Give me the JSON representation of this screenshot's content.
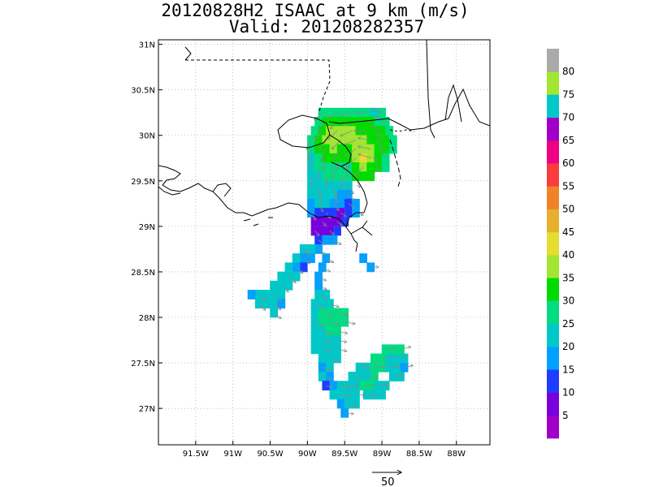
{
  "title": {
    "line1": "20120828H2 ISAAC at 9 km (m/s)",
    "line2": "Valid: 201208282357"
  },
  "map": {
    "lon_range": [
      -92.0,
      -87.55
    ],
    "lat_range": [
      26.6,
      31.05
    ],
    "lon_ticks": [
      {
        "value": -91.5,
        "label": "91.5W"
      },
      {
        "value": -91.0,
        "label": "91W"
      },
      {
        "value": -90.5,
        "label": "90.5W"
      },
      {
        "value": -90.0,
        "label": "90W"
      },
      {
        "value": -89.5,
        "label": "89.5W"
      },
      {
        "value": -89.0,
        "label": "89W"
      },
      {
        "value": -88.5,
        "label": "88.5W"
      },
      {
        "value": -88.0,
        "label": "88W"
      }
    ],
    "lat_ticks": [
      {
        "value": 27.0,
        "label": "27N"
      },
      {
        "value": 27.5,
        "label": "27.5N"
      },
      {
        "value": 28.0,
        "label": "28N"
      },
      {
        "value": 28.5,
        "label": "28.5N"
      },
      {
        "value": 29.0,
        "label": "29N"
      },
      {
        "value": 29.5,
        "label": "29.5N"
      },
      {
        "value": 30.0,
        "label": "30N"
      },
      {
        "value": 30.5,
        "label": "30.5N"
      },
      {
        "value": 31.0,
        "label": "31N"
      }
    ],
    "grid": "dotted",
    "coastline_color": "#000000"
  },
  "colorbar": {
    "colors": [
      "#a000c8",
      "#7800dc",
      "#1e3cff",
      "#00a0ff",
      "#00c8c8",
      "#00dc82",
      "#00dc00",
      "#a0e632",
      "#e6dc32",
      "#e6af2d",
      "#f08228",
      "#fa3c3c",
      "#f00082",
      "#a000c8",
      "#00c8c8",
      "#a0e632",
      "#aaaaaa"
    ],
    "labels": [
      "5",
      "10",
      "15",
      "20",
      "25",
      "30",
      "35",
      "40",
      "45",
      "50",
      "55",
      "60",
      "65",
      "70",
      "75",
      "80"
    ]
  },
  "wind_swaths": [
    {
      "name": "north-core",
      "cells": [
        [
          -89.8,
          30.25,
          27
        ],
        [
          -89.7,
          30.25,
          25
        ],
        [
          -89.6,
          30.25,
          27
        ],
        [
          -89.5,
          30.25,
          28
        ],
        [
          -89.4,
          30.25,
          26
        ],
        [
          -89.3,
          30.25,
          28
        ],
        [
          -89.2,
          30.25,
          25
        ],
        [
          -89.1,
          30.25,
          24
        ],
        [
          -89.0,
          30.25,
          26
        ],
        [
          -89.85,
          30.15,
          26
        ],
        [
          -89.75,
          30.15,
          30
        ],
        [
          -89.65,
          30.15,
          33
        ],
        [
          -89.55,
          30.15,
          34
        ],
        [
          -89.45,
          30.15,
          33
        ],
        [
          -89.35,
          30.15,
          32
        ],
        [
          -89.25,
          30.15,
          30
        ],
        [
          -89.15,
          30.15,
          30
        ],
        [
          -89.05,
          30.15,
          29
        ],
        [
          -88.95,
          30.15,
          28
        ],
        [
          -89.9,
          30.05,
          27
        ],
        [
          -89.8,
          30.05,
          32
        ],
        [
          -89.7,
          30.05,
          35
        ],
        [
          -89.6,
          30.05,
          36
        ],
        [
          -89.5,
          30.05,
          36
        ],
        [
          -89.4,
          30.05,
          35
        ],
        [
          -89.3,
          30.05,
          34
        ],
        [
          -89.2,
          30.05,
          33
        ],
        [
          -89.1,
          30.05,
          31
        ],
        [
          -89.0,
          30.05,
          30
        ],
        [
          -88.9,
          30.05,
          29
        ],
        [
          -89.95,
          29.95,
          26
        ],
        [
          -89.85,
          29.95,
          33
        ],
        [
          -89.75,
          29.95,
          36
        ],
        [
          -89.65,
          29.95,
          37
        ],
        [
          -89.55,
          29.95,
          36
        ],
        [
          -89.45,
          29.95,
          35
        ],
        [
          -89.35,
          29.95,
          36
        ],
        [
          -89.25,
          29.95,
          37
        ],
        [
          -89.15,
          29.95,
          34
        ],
        [
          -89.05,
          29.95,
          32
        ],
        [
          -88.95,
          29.95,
          30
        ],
        [
          -88.85,
          29.95,
          28
        ],
        [
          -89.95,
          29.85,
          25
        ],
        [
          -89.85,
          29.85,
          30
        ],
        [
          -89.75,
          29.85,
          34
        ],
        [
          -89.65,
          29.85,
          35
        ],
        [
          -89.55,
          29.85,
          33
        ],
        [
          -89.45,
          29.85,
          34
        ],
        [
          -89.35,
          29.85,
          37
        ],
        [
          -89.25,
          29.85,
          38
        ],
        [
          -89.15,
          29.85,
          36
        ],
        [
          -89.05,
          29.85,
          33
        ],
        [
          -88.95,
          29.85,
          30
        ],
        [
          -88.85,
          29.85,
          28
        ],
        [
          -89.95,
          29.75,
          24
        ],
        [
          -89.85,
          29.75,
          27
        ],
        [
          -89.75,
          29.75,
          30
        ],
        [
          -89.65,
          29.75,
          31
        ],
        [
          -89.55,
          29.75,
          30
        ],
        [
          -89.45,
          29.75,
          32
        ],
        [
          -89.35,
          29.75,
          38
        ],
        [
          -89.25,
          29.75,
          41
        ],
        [
          -89.15,
          29.75,
          36
        ],
        [
          -89.05,
          29.75,
          32
        ],
        [
          -88.95,
          29.75,
          29
        ],
        [
          -89.95,
          29.65,
          23
        ],
        [
          -89.85,
          29.65,
          25
        ],
        [
          -89.75,
          29.65,
          27
        ],
        [
          -89.65,
          29.65,
          28
        ],
        [
          -89.55,
          29.65,
          27
        ],
        [
          -89.45,
          29.65,
          28
        ],
        [
          -89.35,
          29.65,
          33
        ],
        [
          -89.25,
          29.65,
          36
        ],
        [
          -89.15,
          29.65,
          33
        ],
        [
          -89.05,
          29.65,
          30
        ],
        [
          -88.95,
          29.65,
          28
        ],
        [
          -89.95,
          29.55,
          22
        ],
        [
          -89.85,
          29.55,
          24
        ],
        [
          -89.75,
          29.55,
          25
        ],
        [
          -89.65,
          29.55,
          26
        ],
        [
          -89.55,
          29.55,
          26
        ],
        [
          -89.45,
          29.55,
          26
        ],
        [
          -89.35,
          29.55,
          30
        ],
        [
          -89.25,
          29.55,
          33
        ],
        [
          -89.15,
          29.55,
          31
        ],
        [
          -89.95,
          29.45,
          21
        ],
        [
          -89.85,
          29.45,
          23
        ],
        [
          -89.75,
          29.45,
          24
        ],
        [
          -89.65,
          29.45,
          24
        ],
        [
          -89.55,
          29.45,
          23
        ],
        [
          -89.45,
          29.45,
          22
        ],
        [
          -89.95,
          29.35,
          20
        ],
        [
          -89.85,
          29.35,
          21
        ],
        [
          -89.75,
          29.35,
          22
        ],
        [
          -89.65,
          29.35,
          21
        ],
        [
          -89.55,
          29.35,
          17
        ],
        [
          -89.45,
          29.35,
          18
        ],
        [
          -89.95,
          29.25,
          19
        ],
        [
          -89.85,
          29.25,
          20
        ],
        [
          -89.75,
          29.25,
          21
        ],
        [
          -89.65,
          29.25,
          19
        ],
        [
          -89.55,
          29.25,
          15
        ],
        [
          -89.45,
          29.25,
          14
        ],
        [
          -89.35,
          29.25,
          16
        ]
      ]
    },
    {
      "name": "mid-core",
      "cells": [
        [
          -89.95,
          29.15,
          18
        ],
        [
          -89.85,
          29.15,
          14
        ],
        [
          -89.75,
          29.15,
          13
        ],
        [
          -89.65,
          29.15,
          11
        ],
        [
          -89.55,
          29.15,
          9
        ],
        [
          -89.45,
          29.15,
          13
        ],
        [
          -89.35,
          29.15,
          15
        ],
        [
          -89.9,
          29.05,
          8
        ],
        [
          -89.8,
          29.05,
          6
        ],
        [
          -89.7,
          29.05,
          7
        ],
        [
          -89.6,
          29.05,
          9
        ],
        [
          -89.5,
          29.05,
          12
        ],
        [
          -89.9,
          28.95,
          9
        ],
        [
          -89.8,
          28.95,
          5
        ],
        [
          -89.7,
          28.95,
          7
        ],
        [
          -89.6,
          28.95,
          11
        ],
        [
          -89.85,
          28.85,
          13
        ],
        [
          -89.75,
          28.85,
          16
        ],
        [
          -89.65,
          28.85,
          19
        ],
        [
          -89.25,
          28.65,
          16
        ],
        [
          -89.15,
          28.55,
          15
        ]
      ]
    },
    {
      "name": "west-band",
      "cells": [
        [
          -89.85,
          28.75,
          19
        ],
        [
          -89.95,
          28.75,
          21
        ],
        [
          -90.05,
          28.75,
          20
        ],
        [
          -89.95,
          28.65,
          18
        ],
        [
          -90.05,
          28.65,
          17
        ],
        [
          -90.15,
          28.65,
          21
        ],
        [
          -89.75,
          28.65,
          18
        ],
        [
          -90.05,
          28.55,
          12
        ],
        [
          -90.15,
          28.55,
          19
        ],
        [
          -90.25,
          28.55,
          21
        ],
        [
          -89.8,
          28.55,
          19
        ],
        [
          -90.15,
          28.45,
          20
        ],
        [
          -90.25,
          28.45,
          21
        ],
        [
          -90.35,
          28.45,
          20
        ],
        [
          -89.85,
          28.45,
          18
        ],
        [
          -90.25,
          28.35,
          21
        ],
        [
          -90.35,
          28.35,
          22
        ],
        [
          -90.45,
          28.35,
          21
        ],
        [
          -89.85,
          28.35,
          19
        ],
        [
          -90.35,
          28.25,
          21
        ],
        [
          -90.45,
          28.25,
          22
        ],
        [
          -90.55,
          28.25,
          21
        ],
        [
          -90.65,
          28.25,
          20
        ],
        [
          -90.75,
          28.25,
          19
        ],
        [
          -90.45,
          28.15,
          20
        ],
        [
          -90.55,
          28.15,
          21
        ],
        [
          -90.65,
          28.15,
          20
        ],
        [
          -90.35,
          28.15,
          19
        ],
        [
          -90.45,
          28.05,
          20
        ]
      ]
    },
    {
      "name": "south-band",
      "cells": [
        [
          -89.85,
          28.25,
          20
        ],
        [
          -89.75,
          28.25,
          21
        ],
        [
          -89.9,
          28.15,
          22
        ],
        [
          -89.8,
          28.15,
          23
        ],
        [
          -89.7,
          28.15,
          22
        ],
        [
          -89.9,
          28.05,
          24
        ],
        [
          -89.8,
          28.05,
          25
        ],
        [
          -89.7,
          28.05,
          25
        ],
        [
          -89.6,
          28.05,
          26
        ],
        [
          -89.5,
          28.05,
          25
        ],
        [
          -89.9,
          27.95,
          23
        ],
        [
          -89.8,
          27.95,
          25
        ],
        [
          -89.7,
          27.95,
          26
        ],
        [
          -89.6,
          27.95,
          27
        ],
        [
          -89.5,
          27.95,
          25
        ],
        [
          -89.9,
          27.85,
          23
        ],
        [
          -89.8,
          27.85,
          24
        ],
        [
          -89.7,
          27.85,
          25
        ],
        [
          -89.6,
          27.85,
          25
        ],
        [
          -89.9,
          27.75,
          22
        ],
        [
          -89.8,
          27.75,
          23
        ],
        [
          -89.7,
          27.75,
          23
        ],
        [
          -89.6,
          27.75,
          22
        ],
        [
          -89.9,
          27.65,
          21
        ],
        [
          -89.8,
          27.65,
          22
        ],
        [
          -89.7,
          27.65,
          21
        ],
        [
          -89.6,
          27.65,
          22
        ],
        [
          -89.8,
          27.55,
          20
        ],
        [
          -89.7,
          27.55,
          21
        ],
        [
          -89.6,
          27.55,
          20
        ],
        [
          -89.8,
          27.45,
          19
        ],
        [
          -89.7,
          27.45,
          21
        ],
        [
          -89.8,
          27.35,
          21
        ],
        [
          -89.7,
          27.35,
          19
        ],
        [
          -89.75,
          27.25,
          12
        ],
        [
          -89.65,
          27.25,
          16
        ],
        [
          -89.55,
          27.25,
          21
        ],
        [
          -89.65,
          27.15,
          20
        ],
        [
          -89.55,
          27.15,
          22
        ],
        [
          -89.45,
          27.15,
          21
        ],
        [
          -89.35,
          27.15,
          20
        ],
        [
          -89.55,
          27.05,
          18
        ],
        [
          -89.45,
          27.05,
          20
        ],
        [
          -89.35,
          27.05,
          21
        ],
        [
          -89.5,
          26.95,
          19
        ]
      ]
    },
    {
      "name": "southeast-band",
      "cells": [
        [
          -89.4,
          27.35,
          22
        ],
        [
          -89.3,
          27.35,
          23
        ],
        [
          -89.2,
          27.35,
          24
        ],
        [
          -89.1,
          27.35,
          25
        ],
        [
          -89.45,
          27.25,
          23
        ],
        [
          -89.35,
          27.25,
          24
        ],
        [
          -89.25,
          27.25,
          25
        ],
        [
          -89.15,
          27.25,
          26
        ],
        [
          -89.05,
          27.25,
          24
        ],
        [
          -88.95,
          27.25,
          22
        ],
        [
          -89.3,
          27.45,
          22
        ],
        [
          -89.2,
          27.45,
          24
        ],
        [
          -89.1,
          27.45,
          26
        ],
        [
          -89.0,
          27.45,
          25
        ],
        [
          -88.9,
          27.45,
          23
        ],
        [
          -88.8,
          27.45,
          21
        ],
        [
          -88.7,
          27.45,
          19
        ],
        [
          -89.1,
          27.55,
          25
        ],
        [
          -89.0,
          27.55,
          26
        ],
        [
          -88.9,
          27.55,
          24
        ],
        [
          -88.8,
          27.55,
          22
        ],
        [
          -88.7,
          27.55,
          20
        ],
        [
          -88.95,
          27.65,
          25
        ],
        [
          -88.85,
          27.65,
          26
        ],
        [
          -88.75,
          27.65,
          25
        ],
        [
          -89.1,
          27.15,
          21
        ],
        [
          -89.2,
          27.15,
          22
        ],
        [
          -89.0,
          27.15,
          20
        ],
        [
          -88.85,
          27.35,
          21
        ],
        [
          -88.75,
          27.35,
          20
        ]
      ]
    }
  ],
  "vector_scale": {
    "label": "50"
  }
}
